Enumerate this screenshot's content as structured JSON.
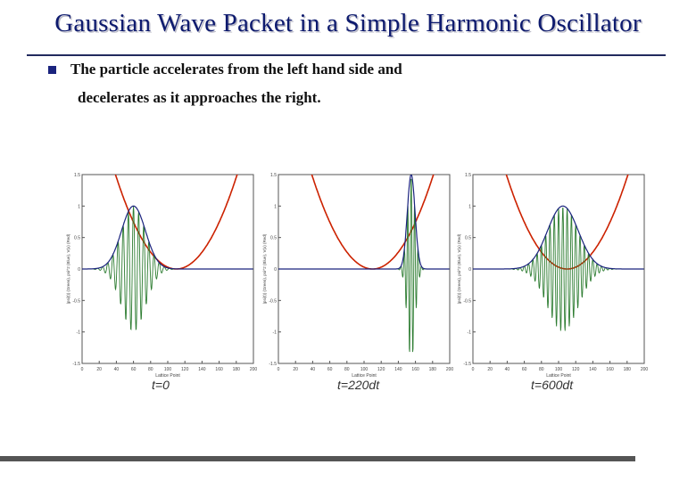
{
  "slide": {
    "title": "Gaussian Wave Packet in a Simple Harmonic Oscillator",
    "bullet_line1": "The particle accelerates from the left hand side and",
    "bullet_line2": "decelerates as it approaches the right."
  },
  "colors": {
    "title": "#0d1a6e",
    "potential": "#cc2200",
    "abs_psi": "#1a237e",
    "real_psi": "#2e7d32",
    "axis": "#555555",
    "bullet": "#1a237e"
  },
  "chart_data": [
    {
      "type": "line",
      "xlabel": "Lattice Point",
      "ylabel": "|psi(t)| (Green), psi^2 (Blue), V(x) (Red)",
      "time_label": "t=0",
      "xlim": [
        0,
        200
      ],
      "ylim": [
        -1.5,
        1.5
      ],
      "xticks": [
        0,
        20,
        40,
        60,
        80,
        100,
        120,
        140,
        160,
        180,
        200
      ],
      "yticks": [
        -1.5,
        -1,
        -0.5,
        0,
        0.5,
        1,
        1.5
      ],
      "yticklabels": [
        "-1.5",
        "-1",
        "-0.5",
        "0",
        "0.5",
        "1",
        "1.5"
      ],
      "packet_center": 60,
      "packet_width": 14,
      "packet_amplitude": 1.0,
      "oscillation_period": 6,
      "potential_min_x": 110,
      "potential_value_at_0": 3.6
    },
    {
      "type": "line",
      "xlabel": "Lattice Point",
      "ylabel": "|psi(t)| (Green), psi^2 (Blue), V(x) (Red)",
      "time_label": "t=220dt",
      "xlim": [
        0,
        200
      ],
      "ylim": [
        -1.5,
        1.5
      ],
      "xticks": [
        0,
        20,
        40,
        60,
        80,
        100,
        120,
        140,
        160,
        180,
        200
      ],
      "yticks": [
        -1.5,
        -1,
        -0.5,
        0,
        0.5,
        1,
        1.5
      ],
      "yticklabels": [
        "-1.5",
        "-1",
        "-0.5",
        "0",
        "0.5",
        "1",
        "1.5"
      ],
      "packet_center": 155,
      "packet_width": 4.5,
      "packet_amplitude": 1.5,
      "oscillation_period": 4,
      "potential_min_x": 110,
      "potential_value_at_0": 3.6
    },
    {
      "type": "line",
      "xlabel": "Lattice Point",
      "ylabel": "|psi(t)| (Green), psi^2 (Blue), V(x) (Red)",
      "time_label": "t=600dt",
      "xlim": [
        0,
        200
      ],
      "ylim": [
        -1.5,
        1.5
      ],
      "xticks": [
        0,
        20,
        40,
        60,
        80,
        100,
        120,
        140,
        160,
        180,
        200
      ],
      "yticks": [
        -1.5,
        -1,
        -0.5,
        0,
        0.5,
        1,
        1.5
      ],
      "yticklabels": [
        "-1.5",
        "-1",
        "-0.5",
        "0",
        "0.5",
        "1",
        "1.5"
      ],
      "packet_center": 105,
      "packet_width": 18,
      "packet_amplitude": 1.0,
      "oscillation_period": 5,
      "potential_min_x": 110,
      "potential_value_at_0": 3.6
    }
  ]
}
